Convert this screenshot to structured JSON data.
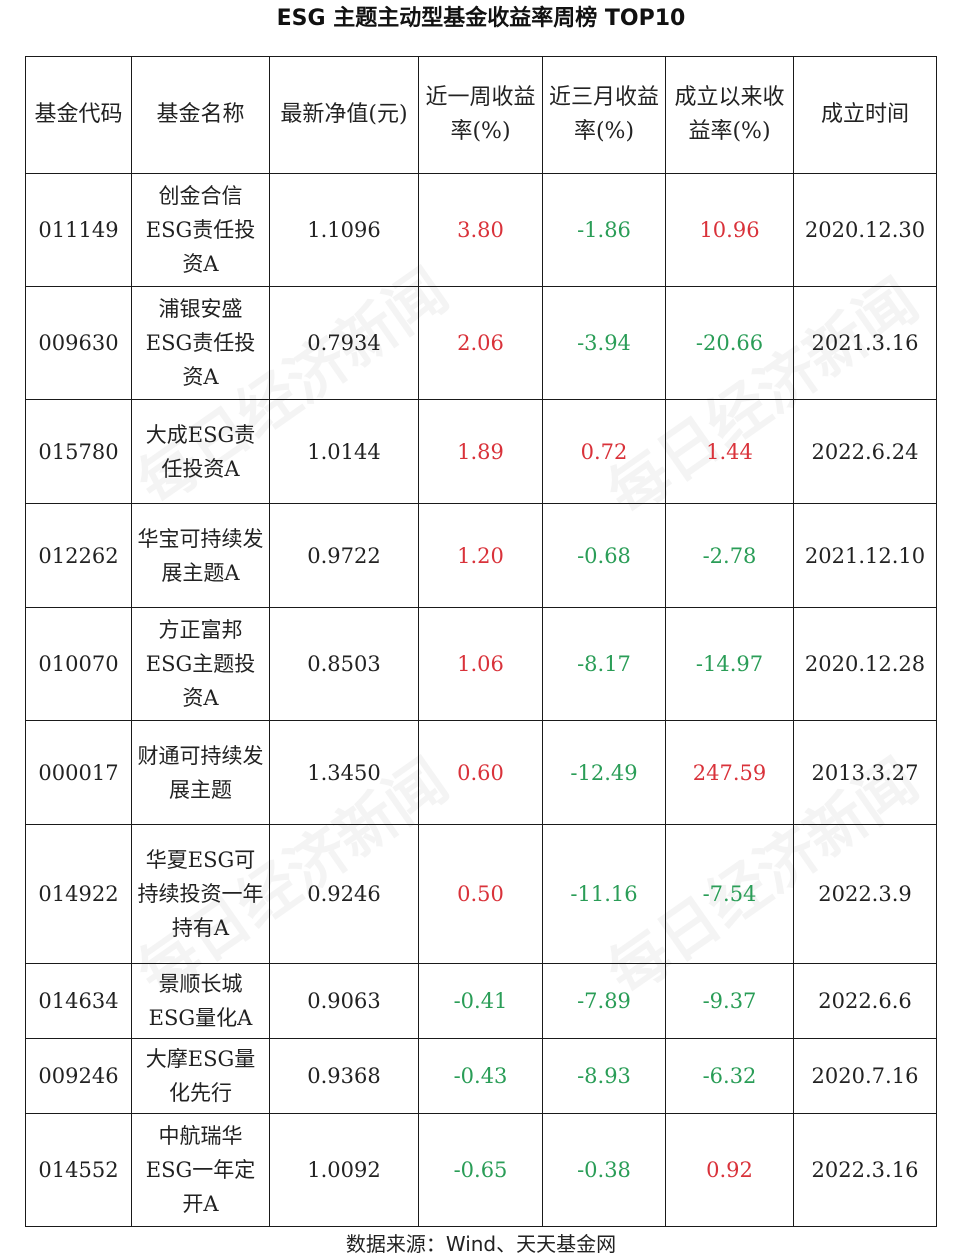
{
  "title": "ESG 主题主动型基金收益率周榜 TOP10",
  "headers": [
    "基金代码",
    "基金名称",
    "最新净值(元)",
    "近一周收益率(%)",
    "近三月收益率(%)",
    "成立以来收益率(%)",
    "成立时间"
  ],
  "rows": [
    {
      "code": "011149",
      "name": "创金合信ESG责任投资A",
      "nav": "1.1096",
      "week": "3.80",
      "three_month": "-1.86",
      "since_inception": "10.96",
      "date": "2020.12.30"
    },
    {
      "code": "009630",
      "name": "浦银安盛ESG责任投资A",
      "nav": "0.7934",
      "week": "2.06",
      "three_month": "-3.94",
      "since_inception": "-20.66",
      "date": "2021.3.16"
    },
    {
      "code": "015780",
      "name": "大成ESG责任投资A",
      "nav": "1.0144",
      "week": "1.89",
      "three_month": "0.72",
      "since_inception": "1.44",
      "date": "2022.6.24"
    },
    {
      "code": "012262",
      "name": "华宝可持续发展主题A",
      "nav": "0.9722",
      "week": "1.20",
      "three_month": "-0.68",
      "since_inception": "-2.78",
      "date": "2021.12.10"
    },
    {
      "code": "010070",
      "name": "方正富邦ESG主题投资A",
      "nav": "0.8503",
      "week": "1.06",
      "three_month": "-8.17",
      "since_inception": "-14.97",
      "date": "2020.12.28"
    },
    {
      "code": "000017",
      "name": "财通可持续发展主题",
      "nav": "1.3450",
      "week": "0.60",
      "three_month": "-12.49",
      "since_inception": "247.59",
      "date": "2013.3.27"
    },
    {
      "code": "014922",
      "name": "华夏ESG可持续投资一年持有A",
      "nav": "0.9246",
      "week": "0.50",
      "three_month": "-11.16",
      "since_inception": "-7.54",
      "date": "2022.3.9"
    },
    {
      "code": "014634",
      "name": "景顺长城ESG量化A",
      "nav": "0.9063",
      "week": "-0.41",
      "three_month": "-7.89",
      "since_inception": "-9.37",
      "date": "2022.6.6"
    },
    {
      "code": "009246",
      "name": "大摩ESG量化先行",
      "nav": "0.9368",
      "week": "-0.43",
      "three_month": "-8.93",
      "since_inception": "-6.32",
      "date": "2020.7.16"
    },
    {
      "code": "014552",
      "name": "中航瑞华ESG一年定开A",
      "nav": "1.0092",
      "week": "-0.65",
      "three_month": "-0.38",
      "since_inception": "0.92",
      "date": "2022.3.16"
    }
  ],
  "source": "数据来源：Wind、天天基金网",
  "watermark": "每日经济新闻",
  "colors": {
    "positive": "#d9323a",
    "negative": "#2a9d57",
    "border": "#1a1a1a"
  }
}
